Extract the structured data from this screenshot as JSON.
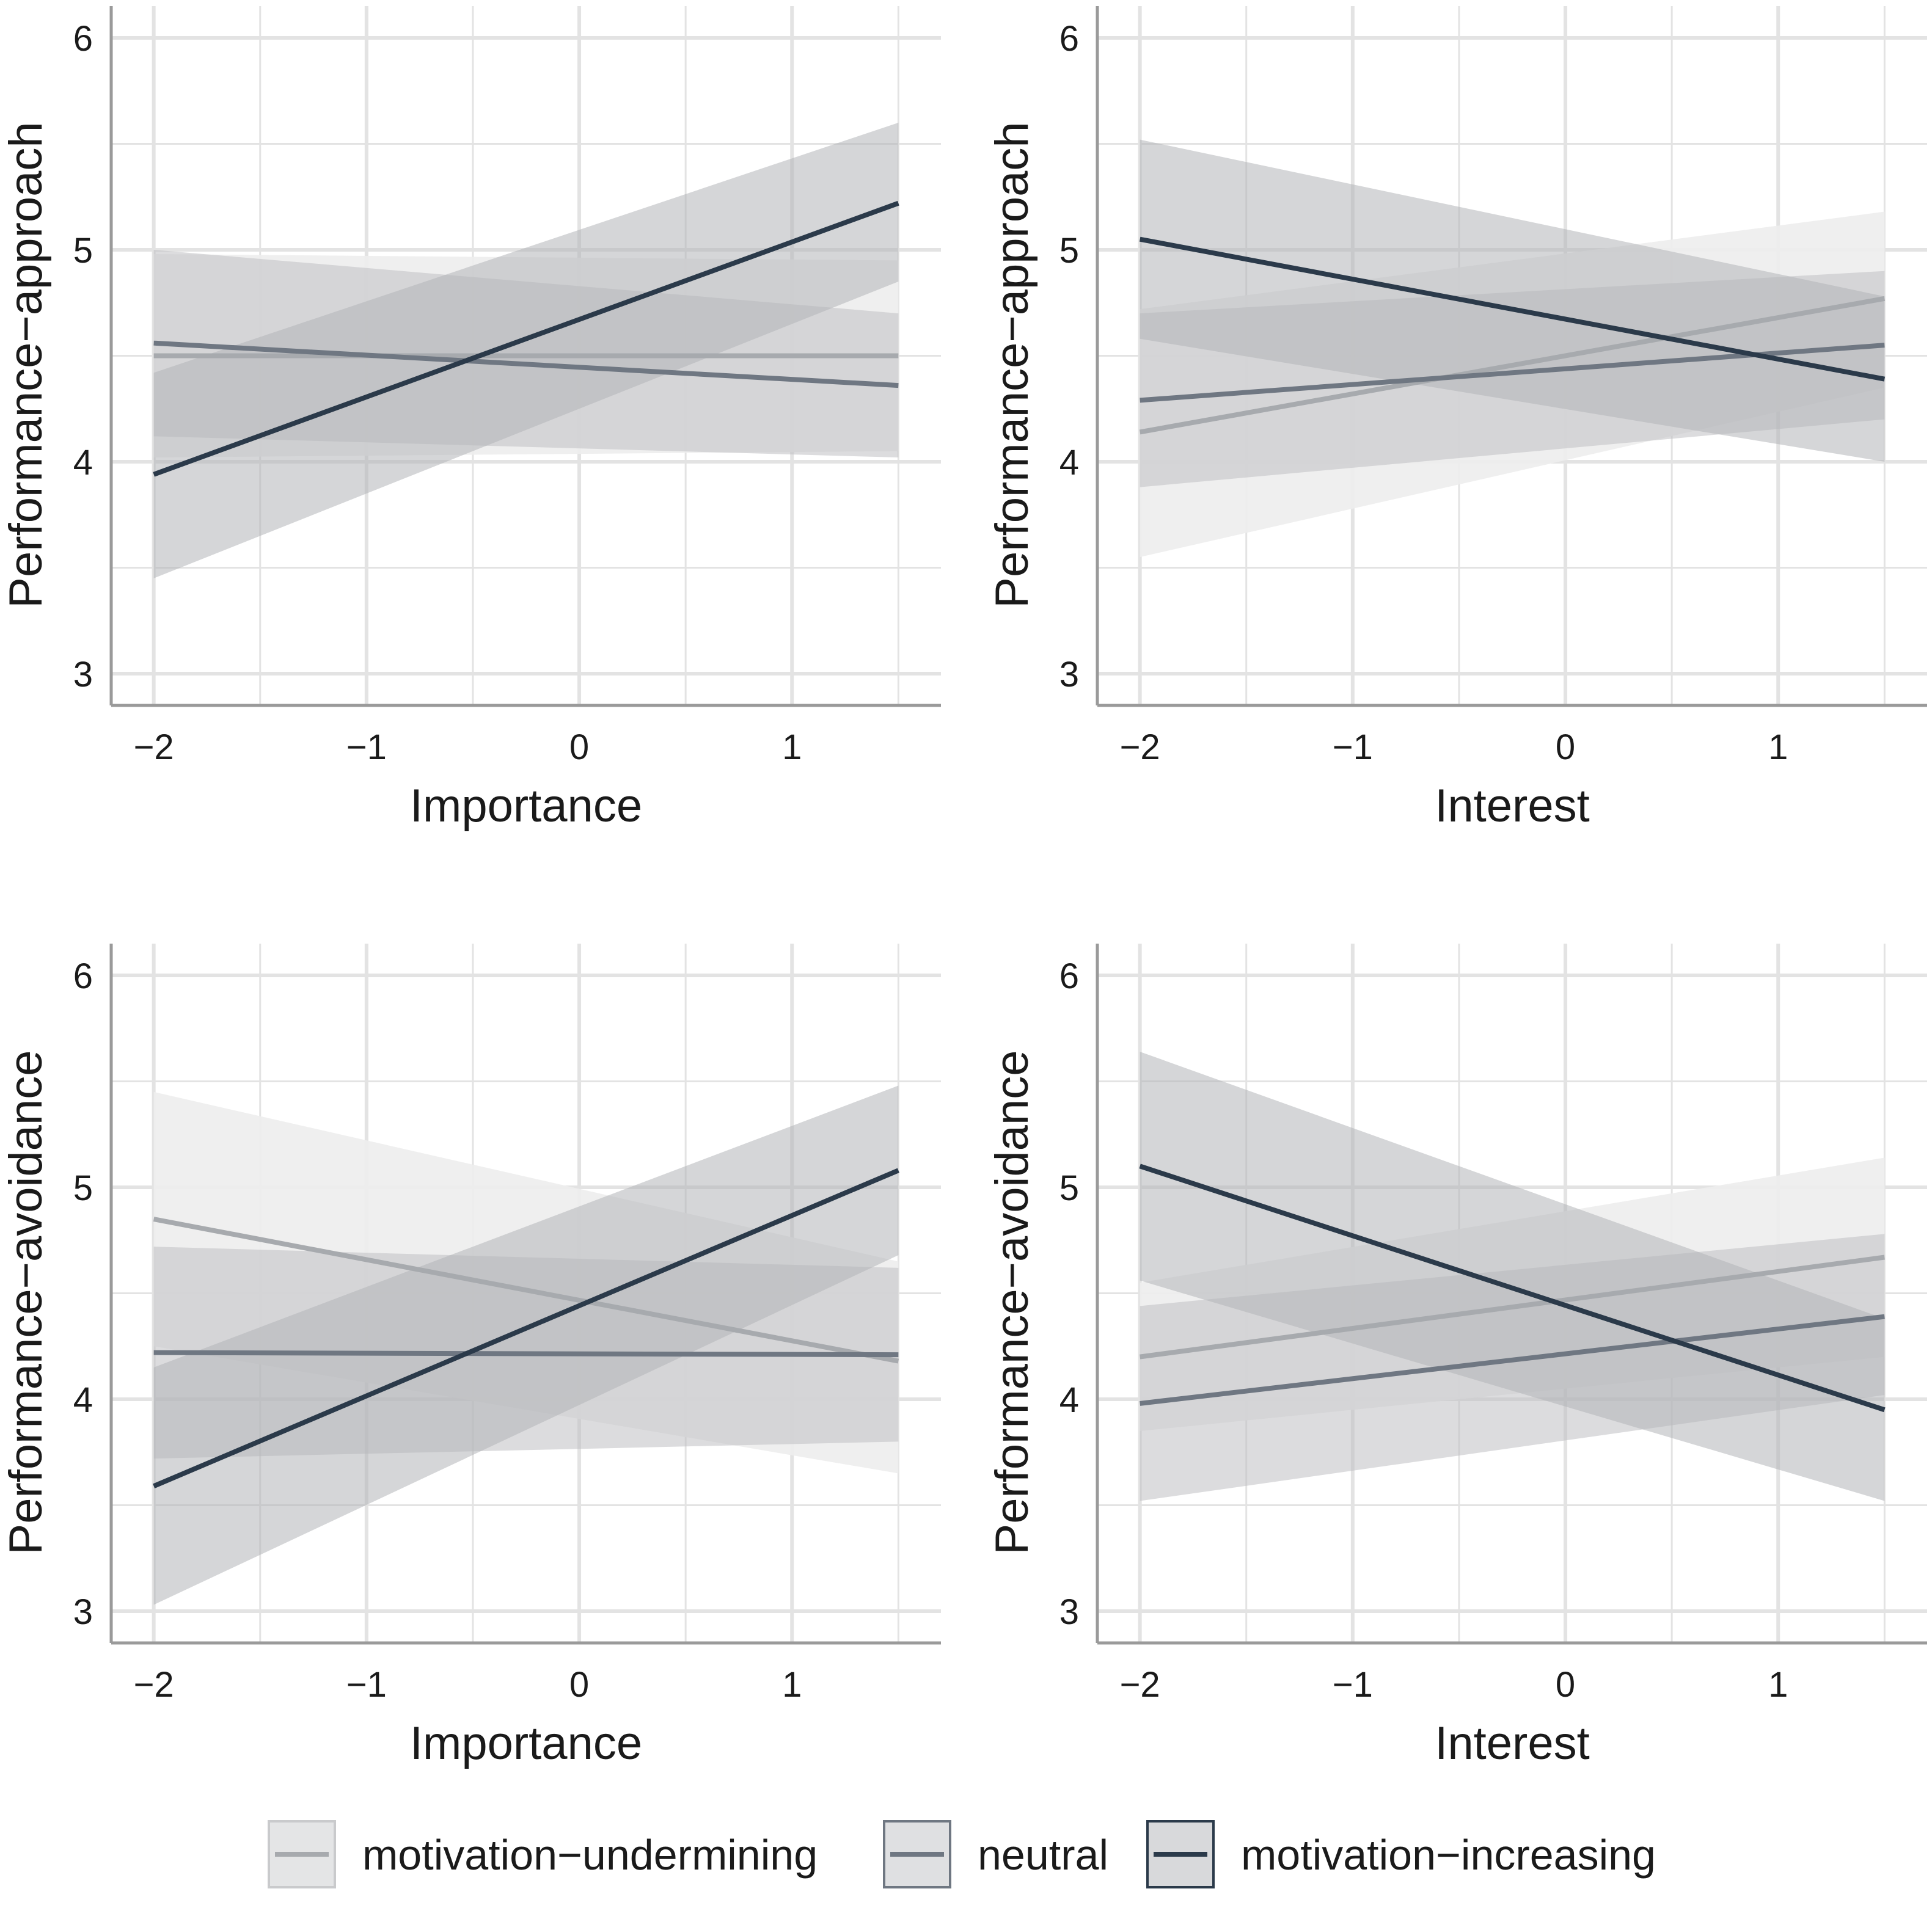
{
  "chart_data": [
    {
      "type": "line",
      "panel": "top-left",
      "xlabel": "Importance",
      "ylabel": "Performance−approach",
      "xlim": [
        -2.2,
        1.7
      ],
      "ylim": [
        2.85,
        6.15
      ],
      "x_ticks": [
        -2,
        -1,
        0,
        1
      ],
      "x_tick_labels": [
        "−2",
        "−1",
        "0",
        "1"
      ],
      "y_ticks": [
        3,
        4,
        5,
        6
      ],
      "y_tick_labels": [
        "3",
        "4",
        "5",
        "6"
      ],
      "series": [
        {
          "name": "motivation−undermining",
          "x": [
            -2,
            1.5
          ],
          "y": [
            4.5,
            4.5
          ],
          "lower": [
            4.02,
            4.05
          ],
          "upper": [
            4.98,
            4.95
          ]
        },
        {
          "name": "neutral",
          "x": [
            -2,
            1.5
          ],
          "y": [
            4.56,
            4.36
          ],
          "lower": [
            4.12,
            4.02
          ],
          "upper": [
            5.0,
            4.7
          ]
        },
        {
          "name": "motivation−increasing",
          "x": [
            -2,
            1.5
          ],
          "y": [
            3.94,
            5.22
          ],
          "lower": [
            3.45,
            4.85
          ],
          "upper": [
            4.42,
            5.6
          ]
        }
      ]
    },
    {
      "type": "line",
      "panel": "top-right",
      "xlabel": "Interest",
      "ylabel": "Performance−approach",
      "xlim": [
        -2.2,
        1.7
      ],
      "ylim": [
        2.85,
        6.15
      ],
      "x_ticks": [
        -2,
        -1,
        0,
        1
      ],
      "x_tick_labels": [
        "−2",
        "−1",
        "0",
        "1"
      ],
      "y_ticks": [
        3,
        4,
        5,
        6
      ],
      "y_tick_labels": [
        "3",
        "4",
        "5",
        "6"
      ],
      "series": [
        {
          "name": "motivation−undermining",
          "x": [
            -2,
            1.5
          ],
          "y": [
            4.14,
            4.77
          ],
          "lower": [
            3.55,
            4.35
          ],
          "upper": [
            4.72,
            5.18
          ]
        },
        {
          "name": "neutral",
          "x": [
            -2,
            1.5
          ],
          "y": [
            4.29,
            4.55
          ],
          "lower": [
            3.88,
            4.2
          ],
          "upper": [
            4.7,
            4.9
          ]
        },
        {
          "name": "motivation−increasing",
          "x": [
            -2,
            1.5
          ],
          "y": [
            5.05,
            4.39
          ],
          "lower": [
            4.58,
            4.0
          ],
          "upper": [
            5.52,
            4.78
          ]
        }
      ]
    },
    {
      "type": "line",
      "panel": "bottom-left",
      "xlabel": "Importance",
      "ylabel": "Performance−avoidance",
      "xlim": [
        -2.2,
        1.7
      ],
      "ylim": [
        2.85,
        6.15
      ],
      "x_ticks": [
        -2,
        -1,
        0,
        1
      ],
      "x_tick_labels": [
        "−2",
        "−1",
        "0",
        "1"
      ],
      "y_ticks": [
        3,
        4,
        5,
        6
      ],
      "y_tick_labels": [
        "3",
        "4",
        "5",
        "6"
      ],
      "series": [
        {
          "name": "motivation−undermining",
          "x": [
            -2,
            1.5
          ],
          "y": [
            4.85,
            4.18
          ],
          "lower": [
            4.25,
            3.65
          ],
          "upper": [
            5.45,
            4.65
          ]
        },
        {
          "name": "neutral",
          "x": [
            -2,
            1.5
          ],
          "y": [
            4.22,
            4.21
          ],
          "lower": [
            3.72,
            3.8
          ],
          "upper": [
            4.72,
            4.62
          ]
        },
        {
          "name": "motivation−increasing",
          "x": [
            -2,
            1.5
          ],
          "y": [
            3.59,
            5.08
          ],
          "lower": [
            3.03,
            4.68
          ],
          "upper": [
            4.15,
            5.48
          ]
        }
      ]
    },
    {
      "type": "line",
      "panel": "bottom-right",
      "xlabel": "Interest",
      "ylabel": "Performance−avoidance",
      "xlim": [
        -2.2,
        1.7
      ],
      "ylim": [
        2.85,
        6.15
      ],
      "x_ticks": [
        -2,
        -1,
        0,
        1
      ],
      "x_tick_labels": [
        "−2",
        "−1",
        "0",
        "1"
      ],
      "y_ticks": [
        3,
        4,
        5,
        6
      ],
      "y_tick_labels": [
        "3",
        "4",
        "5",
        "6"
      ],
      "series": [
        {
          "name": "motivation−undermining",
          "x": [
            -2,
            1.5
          ],
          "y": [
            4.2,
            4.67
          ],
          "lower": [
            3.85,
            4.2
          ],
          "upper": [
            4.55,
            5.14
          ]
        },
        {
          "name": "neutral",
          "x": [
            -2,
            1.5
          ],
          "y": [
            3.98,
            4.39
          ],
          "lower": [
            3.52,
            4.02
          ],
          "upper": [
            4.44,
            4.78
          ]
        },
        {
          "name": "motivation−increasing",
          "x": [
            -2,
            1.5
          ],
          "y": [
            5.1,
            3.95
          ],
          "lower": [
            4.56,
            3.52
          ],
          "upper": [
            5.64,
            4.38
          ]
        }
      ]
    }
  ],
  "legend": {
    "position": "bottom",
    "items": [
      {
        "label": "motivation−undermining",
        "line_color": "#a7aaae",
        "fill_color": "#e4e5e6"
      },
      {
        "label": "neutral",
        "line_color": "#6f7782",
        "fill_color": "#dfe0e2"
      },
      {
        "label": "motivation−increasing",
        "line_color": "#2b3a4a",
        "fill_color": "#d8d9db"
      }
    ]
  },
  "colors": {
    "background": "#ffffff",
    "gridline": "#e3e3e3",
    "axis": "#9a9a9a",
    "ribbons": [
      "#ededed",
      "#d5d6d7",
      "#c8c9cb"
    ]
  }
}
